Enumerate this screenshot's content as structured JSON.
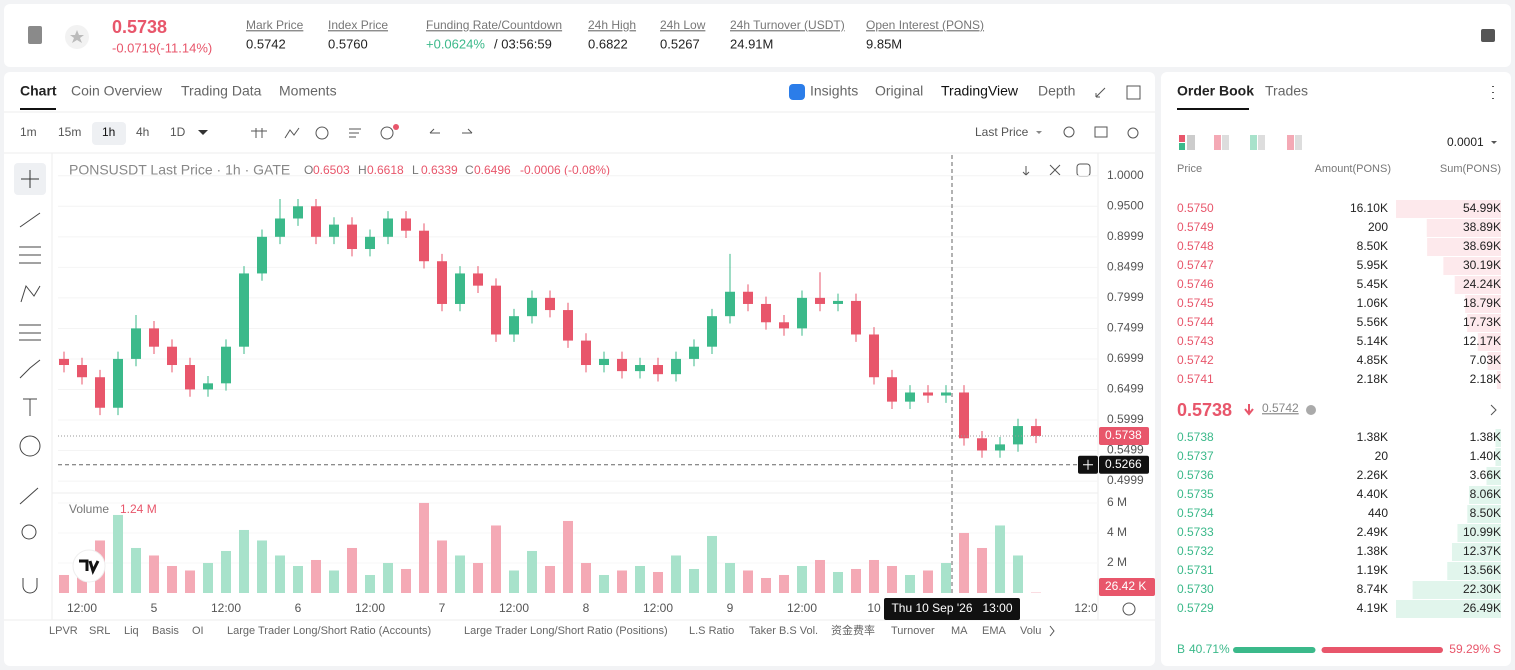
{
  "header": {
    "price": "0.5738",
    "change": "-0.0719(-11.14%)",
    "stats": [
      {
        "label": "Mark Price",
        "value": "0.5742"
      },
      {
        "label": "Index Price",
        "value": "0.5760"
      },
      {
        "label": "Funding Rate/Countdown",
        "value": "+0.0624%",
        "extra": "/ 03:56:59"
      },
      {
        "label": "24h High",
        "value": "0.6822"
      },
      {
        "label": "24h Low",
        "value": "0.5267"
      },
      {
        "label": "24h Turnover (USDT)",
        "value": "24.91M"
      },
      {
        "label": "Open Interest (PONS)",
        "value": "9.85M"
      }
    ]
  },
  "tabs": [
    "Chart",
    "Coin Overview",
    "Trading Data",
    "Moments"
  ],
  "view_tabs": [
    "Insights",
    "Original",
    "TradingView",
    "Depth"
  ],
  "intervals": [
    "1m",
    "15m",
    "1h",
    "4h",
    "1D"
  ],
  "price_type": "Last Price",
  "legend": {
    "symbol": "PONSUSDT Last Price · 1h · GATE",
    "ohlc": [
      [
        "O",
        "0.6503"
      ],
      [
        "H",
        "0.6618"
      ],
      [
        "L",
        "0.6339"
      ],
      [
        "C",
        "0.6496"
      ]
    ],
    "change": "-0.0006 (-0.08%)"
  },
  "chart_data": {
    "type": "candlestick",
    "up_color": "#3bb98a",
    "down_color": "#e8566b",
    "open": [
      0.7,
      0.69,
      0.67,
      0.62,
      0.7,
      0.75,
      0.72,
      0.69,
      0.65,
      0.66,
      0.72,
      0.84,
      0.9,
      0.93,
      0.95,
      0.9,
      0.92,
      0.88,
      0.9,
      0.93,
      0.91,
      0.86,
      0.79,
      0.84,
      0.82,
      0.74,
      0.77,
      0.8,
      0.78,
      0.73,
      0.69,
      0.7,
      0.68,
      0.69,
      0.675,
      0.7,
      0.72,
      0.77,
      0.81,
      0.79,
      0.76,
      0.75,
      0.8,
      0.79,
      0.795,
      0.74,
      0.67,
      0.63,
      0.645,
      0.64,
      0.645,
      0.57,
      0.55,
      0.56,
      0.59
    ],
    "high": [
      0.712,
      0.702,
      0.682,
      0.712,
      0.772,
      0.762,
      0.732,
      0.702,
      0.672,
      0.732,
      0.852,
      0.912,
      0.962,
      0.962,
      0.962,
      0.932,
      0.932,
      0.912,
      0.942,
      0.942,
      0.922,
      0.872,
      0.852,
      0.852,
      0.832,
      0.782,
      0.812,
      0.812,
      0.792,
      0.742,
      0.712,
      0.712,
      0.702,
      0.702,
      0.712,
      0.732,
      0.782,
      0.872,
      0.822,
      0.802,
      0.772,
      0.812,
      0.842,
      0.807,
      0.807,
      0.752,
      0.682,
      0.657,
      0.657,
      0.657,
      0.657,
      0.582,
      0.572,
      0.602,
      0.602
    ],
    "low": [
      0.678,
      0.658,
      0.608,
      0.608,
      0.688,
      0.708,
      0.678,
      0.638,
      0.638,
      0.648,
      0.708,
      0.828,
      0.888,
      0.918,
      0.888,
      0.888,
      0.868,
      0.868,
      0.888,
      0.898,
      0.848,
      0.778,
      0.778,
      0.808,
      0.728,
      0.728,
      0.758,
      0.768,
      0.718,
      0.678,
      0.678,
      0.668,
      0.668,
      0.663,
      0.663,
      0.688,
      0.708,
      0.758,
      0.778,
      0.748,
      0.738,
      0.738,
      0.778,
      0.778,
      0.728,
      0.658,
      0.618,
      0.618,
      0.628,
      0.628,
      0.558,
      0.538,
      0.538,
      0.548,
      0.562
    ],
    "close": [
      0.69,
      0.67,
      0.62,
      0.7,
      0.75,
      0.72,
      0.69,
      0.65,
      0.66,
      0.72,
      0.84,
      0.9,
      0.93,
      0.95,
      0.9,
      0.92,
      0.88,
      0.9,
      0.93,
      0.91,
      0.86,
      0.79,
      0.84,
      0.82,
      0.74,
      0.77,
      0.8,
      0.78,
      0.73,
      0.69,
      0.7,
      0.68,
      0.69,
      0.675,
      0.7,
      0.72,
      0.77,
      0.81,
      0.79,
      0.76,
      0.75,
      0.8,
      0.79,
      0.795,
      0.74,
      0.67,
      0.63,
      0.645,
      0.64,
      0.645,
      0.57,
      0.55,
      0.56,
      0.59,
      0.5738
    ],
    "ylim": [
      0.482,
      1.034
    ],
    "yticks": [
      {
        "value": 1,
        "label": "1.0000"
      },
      {
        "value": 0.95,
        "label": "0.9500"
      },
      0.8999,
      0.8499,
      0.7999,
      0.7499,
      0.6999,
      0.6499,
      0.5999,
      0.5499,
      0.4999
    ],
    "last_price": 0.5738,
    "crosshair_price": 0.5266,
    "xticks": [
      "12:00",
      "5",
      "12:00",
      "6",
      "12:00",
      "7",
      "12:00",
      "8",
      "12:00",
      "9",
      "12:00",
      "10",
      "12:0"
    ],
    "crosshair_time": "Thu 10 Sep '26   13:00",
    "volume": {
      "title": "Volume",
      "current": "1.24 M",
      "values": [
        1200000,
        2000000,
        3500000,
        5200000,
        3000000,
        2500000,
        1800000,
        1500000,
        2000000,
        2800000,
        4200000,
        3500000,
        2500000,
        1800000,
        2200000,
        1500000,
        3000000,
        1200000,
        2000000,
        1600000,
        6000000,
        3500000,
        2500000,
        2000000,
        4500000,
        1500000,
        2800000,
        1800000,
        4800000,
        2000000,
        1200000,
        1500000,
        1800000,
        1400000,
        2500000,
        1600000,
        3800000,
        2000000,
        1500000,
        1000000,
        1200000,
        1800000,
        2200000,
        1400000,
        1600000,
        2200000,
        1800000,
        1200000,
        1500000,
        2000000,
        4000000,
        3000000,
        4500000,
        2500000,
        26420
      ],
      "last_label": "26.42 K",
      "ylim": [
        0,
        6530000
      ],
      "yticks": [
        {
          "value": 6000000,
          "label": "6 M"
        },
        {
          "value": 4000000,
          "label": "4 M"
        },
        {
          "value": 2000000,
          "label": "2 M"
        }
      ]
    }
  },
  "indicators": [
    "LPVR",
    "SRL",
    "Liq",
    "Basis",
    "OI",
    "Large Trader Long/Short Ratio (Accounts)",
    "Large Trader Long/Short Ratio (Positions)",
    "L.S Ratio",
    "Taker B.S Vol.",
    "资金费率",
    "Turnover",
    "MA",
    "EMA",
    "Volu"
  ],
  "order_book": {
    "tabs": [
      "Order Book",
      "Trades"
    ],
    "precision": "0.0001",
    "columns": [
      "Price",
      "Amount(PONS)",
      "Sum(PONS)"
    ],
    "asks": [
      [
        "0.5750",
        "16.10K",
        "54.99K"
      ],
      [
        "0.5749",
        "200",
        "38.89K"
      ],
      [
        "0.5748",
        "8.50K",
        "38.69K"
      ],
      [
        "0.5747",
        "5.95K",
        "30.19K"
      ],
      [
        "0.5746",
        "5.45K",
        "24.24K"
      ],
      [
        "0.5745",
        "1.06K",
        "18.79K"
      ],
      [
        "0.5744",
        "5.56K",
        "17.73K"
      ],
      [
        "0.5743",
        "5.14K",
        "12.17K"
      ],
      [
        "0.5742",
        "4.85K",
        "7.03K"
      ],
      [
        "0.5741",
        "2.18K",
        "2.18K"
      ]
    ],
    "mid": {
      "price": "0.5738",
      "mark": "0.5742"
    },
    "bids": [
      [
        "0.5738",
        "1.38K",
        "1.38K"
      ],
      [
        "0.5737",
        "20",
        "1.40K"
      ],
      [
        "0.5736",
        "2.26K",
        "3.66K"
      ],
      [
        "0.5735",
        "4.40K",
        "8.06K"
      ],
      [
        "0.5734",
        "440",
        "8.50K"
      ],
      [
        "0.5733",
        "2.49K",
        "10.99K"
      ],
      [
        "0.5732",
        "1.38K",
        "12.37K"
      ],
      [
        "0.5731",
        "1.19K",
        "13.56K"
      ],
      [
        "0.5730",
        "8.74K",
        "22.30K"
      ],
      [
        "0.5729",
        "4.19K",
        "26.49K"
      ]
    ],
    "ratio": {
      "buy_side": "B",
      "buy": 40.71,
      "buy_label": "40.71%",
      "sell": 59.29,
      "sell_label": "59.29%",
      "sell_side": "S"
    }
  }
}
